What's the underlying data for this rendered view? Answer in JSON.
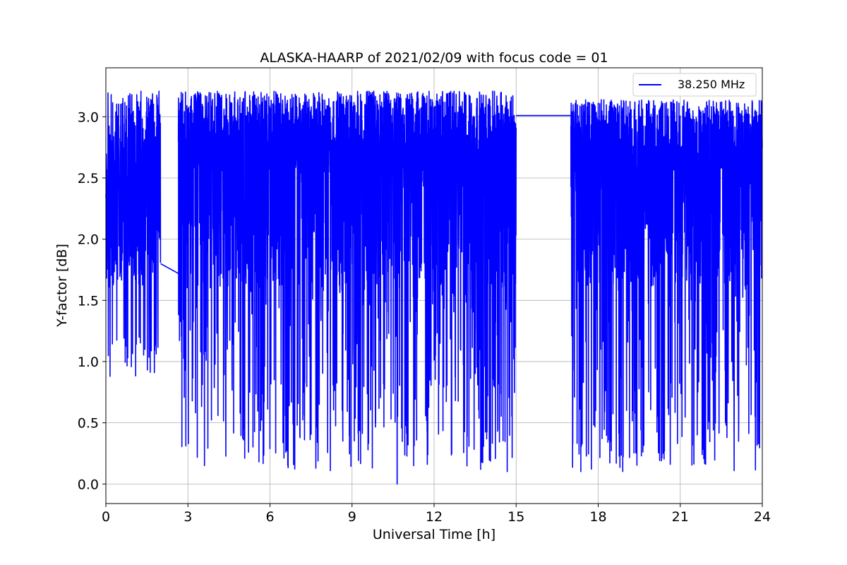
{
  "chart_data": {
    "type": "line",
    "title": "ALASKA-HAARP of 2021/02/09 with focus code = 01",
    "xlabel": "Universal Time [h]",
    "ylabel": "Y-factor [dB]",
    "xlim": [
      0,
      24
    ],
    "ylim": [
      -0.16,
      3.4
    ],
    "xticks": [
      0,
      3,
      6,
      9,
      12,
      15,
      18,
      21,
      24
    ],
    "xtick_labels": [
      "0",
      "3",
      "6",
      "9",
      "12",
      "15",
      "18",
      "21",
      "24"
    ],
    "yticks": [
      0.0,
      0.5,
      1.0,
      1.5,
      2.0,
      2.5,
      3.0
    ],
    "ytick_labels": [
      "0.0",
      "0.5",
      "1.0",
      "1.5",
      "2.0",
      "2.5",
      "3.0"
    ],
    "grid": true,
    "legend_position": "top-right",
    "series": [
      {
        "name": "38.250 MHz",
        "color": "#0000ff",
        "segments": [
          {
            "x_range": [
              0.0,
              2.0
            ],
            "upper_typical": 3.05,
            "upper_peak": 3.21,
            "lower_typical": 1.6,
            "lower_dips": [
              1.0,
              0.87,
              1.05,
              1.12,
              1.1,
              0.98,
              1.08,
              0.9,
              0.95,
              0.87
            ]
          },
          {
            "x_range": [
              2.65,
              15.0
            ],
            "upper_typical": 3.07,
            "upper_peak": 3.21,
            "lower_typical": 0.3,
            "lower_min": 0.0,
            "min_at_x": 10.65
          },
          {
            "x_range": [
              17.0,
              24.0
            ],
            "upper_typical": 3.05,
            "upper_peak": 3.14,
            "lower_typical": 0.3,
            "lower_min": 0.03
          }
        ],
        "gap_connectors": [
          {
            "from": [
              2.0,
              1.8
            ],
            "to": [
              2.65,
              1.72
            ]
          },
          {
            "from": [
              15.0,
              3.01
            ],
            "to": [
              17.0,
              3.01
            ]
          }
        ]
      }
    ]
  }
}
